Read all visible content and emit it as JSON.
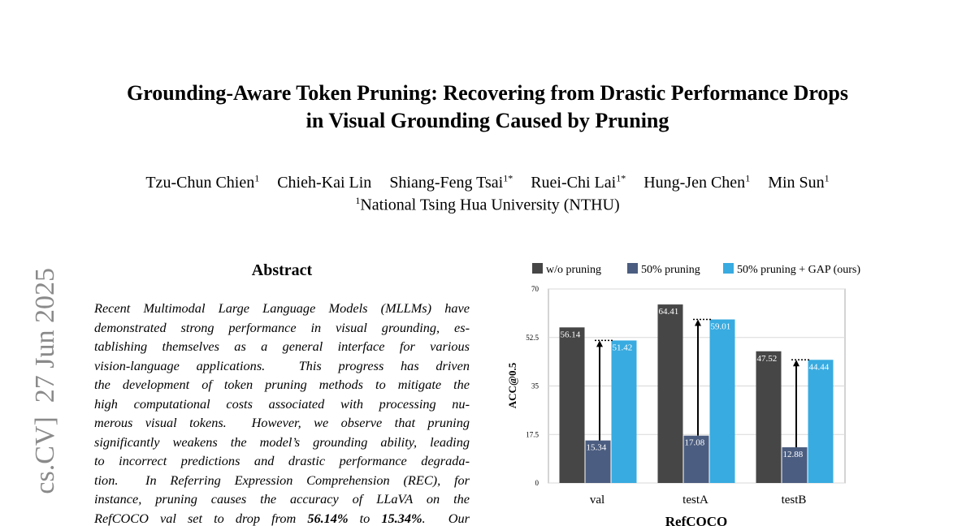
{
  "side_label": "cs.CV]  27 Jun 2025",
  "header": {
    "title_lines": [
      "Grounding-Aware Token Pruning: Recovering from Drastic Performance Drops",
      "in Visual Grounding Caused by Pruning"
    ],
    "authors": [
      {
        "name": "Tzu-Chun Chien",
        "sup": "1"
      },
      {
        "name": "Chieh-Kai Lin"
      },
      {
        "name": "Shiang-Feng Tsai",
        "sup": "1*"
      },
      {
        "name": "Ruei-Chi Lai",
        "sup": "1*"
      },
      {
        "name": "Hung-Jen Chen",
        "sup": "1"
      },
      {
        "name": "Min Sun",
        "sup": "1"
      }
    ],
    "affiliation": {
      "sup": "1",
      "text": "National Tsing Hua University (NTHU)"
    }
  },
  "abstract": {
    "heading": "Abstract",
    "lines": [
      [
        "Recent Multimodal Large Language Models (MLLMs) have"
      ],
      [
        "demonstrated strong performance in visual grounding, es-"
      ],
      [
        "tablishing themselves as a general interface for various"
      ],
      [
        "vision-language applications.  This progress has driven"
      ],
      [
        "the development of token pruning methods to mitigate the"
      ],
      [
        "high computational costs associated with processing nu-"
      ],
      [
        "merous visual tokens.  However, we observe that pruning"
      ],
      [
        "significantly weakens the model’s grounding ability, leading"
      ],
      [
        "to incorrect predictions and drastic performance degrada-"
      ],
      [
        "tion.  In Referring Expression Comprehension (REC), for"
      ],
      [
        "instance, pruning causes the accuracy of LLaVA on the"
      ],
      [
        "RefCOCO val set to drop from ",
        {
          "text": "56.14%",
          "bold": true
        },
        " to ",
        {
          "text": "15.34%",
          "bold": true
        },
        ".  Our"
      ]
    ]
  },
  "chart_data": {
    "type": "bar",
    "y_label": "ACC@0.5",
    "x_label": "RefCOCO",
    "categories": [
      "val",
      "testA",
      "testB"
    ],
    "series": [
      {
        "name": "w/o pruning",
        "color": "#464646",
        "values": [
          56.14,
          64.41,
          47.52
        ]
      },
      {
        "name": "50% pruning",
        "color": "#4b5d80",
        "values": [
          15.34,
          17.08,
          12.88
        ]
      },
      {
        "name": "50% pruning + GAP (ours)",
        "color": "#38abe0",
        "values": [
          51.42,
          59.01,
          44.44
        ]
      }
    ],
    "ylim": [
      0,
      70
    ],
    "yticks": [
      0,
      17.5,
      35,
      52.5,
      70
    ],
    "grid": true
  }
}
